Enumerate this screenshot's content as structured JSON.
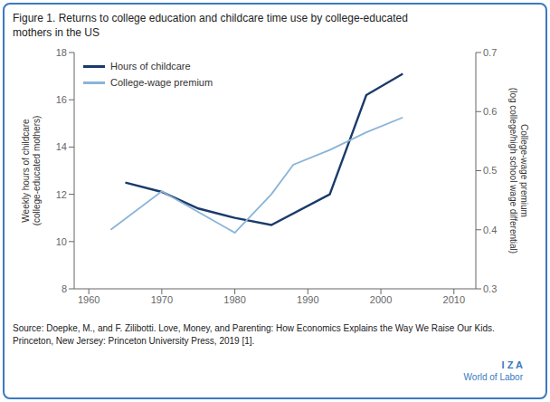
{
  "chart_data": {
    "type": "line",
    "title": "Figure 1. Returns to college education and childcare time use by college-educated\nmothers in the US",
    "ylabel": "Weekly hours of childcare\n(college-educated mothers)",
    "y2label": "College-wage premium\n(log college/high school wage differential)",
    "xlim": [
      1958,
      2013
    ],
    "xticks": [
      1960,
      1970,
      1980,
      1990,
      2000,
      2010
    ],
    "ylim": [
      8,
      18
    ],
    "yticks": [
      8,
      10,
      12,
      14,
      16,
      18
    ],
    "y2lim": [
      0.3,
      0.7
    ],
    "y2ticks": [
      0.3,
      0.4,
      0.5,
      0.6,
      0.7
    ],
    "grid": false,
    "legend": "upper left",
    "series": [
      {
        "name": "Hours of childcare",
        "color": "#1a3a6b",
        "x": [
          1965,
          1970,
          1975,
          1980,
          1985,
          1993,
          1998,
          2003
        ],
        "values": [
          12.5,
          12.1,
          11.4,
          11.0,
          10.7,
          12.0,
          16.2,
          17.1
        ]
      },
      {
        "name": "College-wage premium",
        "color": "#8ab4d8",
        "axis": "y2",
        "x": [
          1963,
          1970,
          1980,
          1985,
          1988,
          1993,
          1998,
          2003
        ],
        "values": [
          0.4,
          0.465,
          0.395,
          0.46,
          0.51,
          0.535,
          0.565,
          0.59
        ]
      }
    ],
    "annotations": [
      "Source: Doepke, M., and F. Zilibotti. Love, Money, and Parenting: How Economics Explains the Way We Raise Our Kids. Princeton, New Jersey: Princeton University Press, 2019 [1].",
      "I Z A",
      "World of Labor"
    ]
  }
}
